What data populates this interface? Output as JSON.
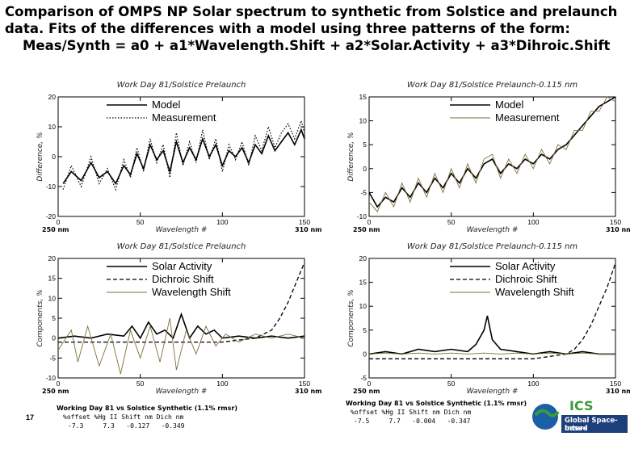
{
  "title": {
    "line1": "Comparison of OMPS NP Solar spectrum to synthetic from Solstice and prelaunch",
    "line2": "data. Fits of the differences with a model using three patterns of the form:",
    "line3": "Meas/Synth = a0 + a1*Wavelength.Shift + a2*Solar.Activity + a3*Dihroic.Shift"
  },
  "page_number": "17",
  "logo": {
    "line1": "Global Space-based",
    "line2": "Inter-Calibration System",
    "colors": [
      "#1a5fa8",
      "#3a9a3a",
      "#1d3f7a"
    ]
  },
  "footers": [
    {
      "heading": "Working Day 81 vs Solstice Synthetic (1.1% rmsr)",
      "cols": "%offset %Hg II Shift nm Dich nm",
      "vals": "-7.3     7.3   -0.127   -0.349"
    },
    {
      "heading": "Working Day 81 vs Solstice Synthetic (1.1% rmsr)",
      "cols": "%offset %Hg II Shift nm Dich nm",
      "vals": "-7.5     7.7   -0.004   -0.347"
    }
  ],
  "chart_data": [
    {
      "type": "line",
      "title": "Work Day 81/Solstice Prelaunch",
      "xlabel": "Wavelength #",
      "ylabel": "Difference, %",
      "xlim": [
        0,
        150
      ],
      "ylim": [
        -20,
        20
      ],
      "xticks": [
        "0",
        "50",
        "100",
        "150"
      ],
      "yticks": [
        "-20",
        "-10",
        "0",
        "10",
        "20"
      ],
      "range_left": "250 nm",
      "range_right": "310 nm",
      "legend": [
        "Model",
        "Measurement"
      ],
      "series": [
        {
          "name": "Model",
          "style": "solid",
          "x": [
            3,
            8,
            14,
            20,
            25,
            30,
            35,
            40,
            44,
            48,
            52,
            56,
            60,
            64,
            68,
            72,
            76,
            80,
            84,
            88,
            92,
            96,
            100,
            104,
            108,
            112,
            116,
            120,
            124,
            128,
            132,
            136,
            140,
            144,
            148,
            150
          ],
          "y": [
            -9,
            -5,
            -8,
            -2,
            -7,
            -5,
            -9,
            -3,
            -6,
            1,
            -4,
            4,
            -1,
            2,
            -5,
            5,
            -2,
            3,
            -1,
            6,
            0,
            4,
            -3,
            2,
            0,
            3,
            -2,
            4,
            1,
            7,
            2,
            5,
            8,
            4,
            9,
            6
          ]
        },
        {
          "name": "Measurement",
          "style": "dotted",
          "x": [
            3,
            8,
            14,
            20,
            25,
            30,
            35,
            40,
            44,
            48,
            52,
            56,
            60,
            64,
            68,
            72,
            76,
            80,
            84,
            88,
            92,
            96,
            100,
            104,
            108,
            112,
            116,
            120,
            124,
            128,
            132,
            136,
            140,
            144,
            148,
            150
          ],
          "y": [
            -11,
            -3,
            -10,
            0,
            -9,
            -4,
            -11,
            -1,
            -7,
            3,
            -5,
            6,
            -2,
            4,
            -7,
            8,
            -3,
            5,
            -2,
            9,
            -1,
            6,
            -5,
            4,
            -1,
            5,
            -3,
            7,
            2,
            10,
            3,
            8,
            11,
            6,
            12,
            8
          ]
        }
      ]
    },
    {
      "type": "line",
      "title": "Work Day 81/Solstice Prelaunch-0.115 nm",
      "xlabel": "Wavelength #",
      "ylabel": "Difference, %",
      "xlim": [
        0,
        150
      ],
      "ylim": [
        -10,
        15
      ],
      "xticks": [
        "0",
        "50",
        "100",
        "150"
      ],
      "yticks": [
        "-10",
        "-5",
        "0",
        "5",
        "10",
        "15"
      ],
      "range_left": "250 nm",
      "range_right": "310 nm",
      "legend": [
        "Model",
        "Measurement"
      ],
      "series": [
        {
          "name": "Model",
          "style": "solid",
          "x": [
            0,
            5,
            10,
            15,
            20,
            25,
            30,
            35,
            40,
            45,
            50,
            55,
            60,
            65,
            70,
            75,
            80,
            85,
            90,
            95,
            100,
            105,
            110,
            115,
            120,
            125,
            130,
            135,
            140,
            145,
            150
          ],
          "y": [
            -5,
            -8,
            -6,
            -7,
            -4,
            -6,
            -3,
            -5,
            -2,
            -4,
            -1,
            -3,
            0,
            -2,
            1,
            2,
            -1,
            1,
            0,
            2,
            1,
            3,
            2,
            4,
            5,
            7,
            9,
            11,
            13,
            14,
            15
          ]
        },
        {
          "name": "Measurement",
          "style": "thin",
          "x": [
            0,
            5,
            10,
            15,
            20,
            25,
            30,
            35,
            40,
            45,
            50,
            55,
            60,
            65,
            70,
            75,
            80,
            85,
            90,
            95,
            100,
            105,
            110,
            115,
            120,
            125,
            130,
            135,
            140,
            145,
            150
          ],
          "y": [
            -7,
            -9,
            -5,
            -8,
            -3,
            -7,
            -2,
            -6,
            -1,
            -5,
            0,
            -4,
            1,
            -3,
            2,
            3,
            -2,
            2,
            -1,
            3,
            0,
            4,
            1,
            5,
            4,
            8,
            8,
            12,
            12,
            15,
            14
          ]
        }
      ]
    },
    {
      "type": "line",
      "title": "Work Day 81/Solstice Prelaunch",
      "xlabel": "Wavelength #",
      "ylabel": "Components, %",
      "xlim": [
        0,
        150
      ],
      "ylim": [
        -10,
        20
      ],
      "xticks": [
        "0",
        "50",
        "100",
        "150"
      ],
      "yticks": [
        "-10",
        "-5",
        "0",
        "5",
        "10",
        "15",
        "20"
      ],
      "range_left": "250 nm",
      "range_right": "310 nm",
      "legend": [
        "Solar Activity",
        "Dichroic Shift",
        "Wavelength Shift"
      ],
      "series": [
        {
          "name": "Solar Activity",
          "style": "solid",
          "x": [
            0,
            10,
            20,
            30,
            40,
            45,
            50,
            55,
            60,
            65,
            70,
            75,
            80,
            85,
            90,
            95,
            100,
            110,
            120,
            130,
            140,
            150
          ],
          "y": [
            0,
            0.5,
            0,
            1,
            0.5,
            3,
            0,
            4,
            1,
            2,
            0,
            6,
            0,
            3,
            1,
            2,
            0,
            0.5,
            0,
            0.5,
            0,
            0.5
          ]
        },
        {
          "name": "Dichroic Shift",
          "style": "dashed",
          "x": [
            0,
            20,
            40,
            60,
            80,
            100,
            110,
            120,
            130,
            135,
            140,
            145,
            150
          ],
          "y": [
            -1,
            -1,
            -1,
            -1,
            -1,
            -1,
            -0.5,
            0,
            2,
            5,
            9,
            14,
            19
          ]
        },
        {
          "name": "Wavelength Shift",
          "style": "thin",
          "x": [
            0,
            8,
            12,
            18,
            25,
            32,
            38,
            44,
            50,
            56,
            62,
            68,
            72,
            78,
            84,
            90,
            96,
            102,
            110,
            120,
            130,
            140,
            150
          ],
          "y": [
            -3,
            2,
            -6,
            3,
            -7,
            1,
            -9,
            2,
            -5,
            3,
            -6,
            5,
            -8,
            2,
            -4,
            3,
            -2,
            1,
            -1,
            1,
            0,
            1,
            0
          ]
        }
      ]
    },
    {
      "type": "line",
      "title": "Work Day 81/Solstice Prelaunch-0.115 nm",
      "xlabel": "Wavelength #",
      "ylabel": "Components, %",
      "xlim": [
        0,
        150
      ],
      "ylim": [
        -5,
        20
      ],
      "xticks": [
        "0",
        "50",
        "100",
        "150"
      ],
      "yticks": [
        "-5",
        "0",
        "5",
        "10",
        "15",
        "20"
      ],
      "range_left": "250 nm",
      "range_right": "310 nm",
      "legend": [
        "Solar Activity",
        "Dichroic Shift",
        "Wavelength Shift"
      ],
      "series": [
        {
          "name": "Solar Activity",
          "style": "solid",
          "x": [
            0,
            10,
            20,
            30,
            40,
            50,
            60,
            65,
            70,
            72,
            75,
            80,
            90,
            100,
            110,
            120,
            130,
            140,
            150
          ],
          "y": [
            0,
            0.5,
            0,
            1,
            0.5,
            1,
            0.5,
            2,
            5,
            8,
            3,
            1,
            0.5,
            0,
            0.5,
            0,
            0.5,
            0,
            0
          ]
        },
        {
          "name": "Dichroic Shift",
          "style": "dashed",
          "x": [
            0,
            20,
            40,
            60,
            80,
            100,
            110,
            120,
            125,
            130,
            135,
            140,
            145,
            150
          ],
          "y": [
            -1,
            -1,
            -1,
            -1,
            -1,
            -1,
            -0.5,
            0,
            1,
            3,
            6,
            10,
            14,
            19
          ]
        },
        {
          "name": "Wavelength Shift",
          "style": "thin",
          "x": [
            0,
            10,
            20,
            30,
            40,
            50,
            60,
            70,
            80,
            90,
            100,
            110,
            120,
            130,
            140,
            150
          ],
          "y": [
            0,
            0.2,
            0,
            0.2,
            0,
            0.2,
            0,
            0.2,
            0,
            0.2,
            0,
            0.2,
            0,
            0.2,
            0,
            0
          ]
        }
      ]
    }
  ]
}
